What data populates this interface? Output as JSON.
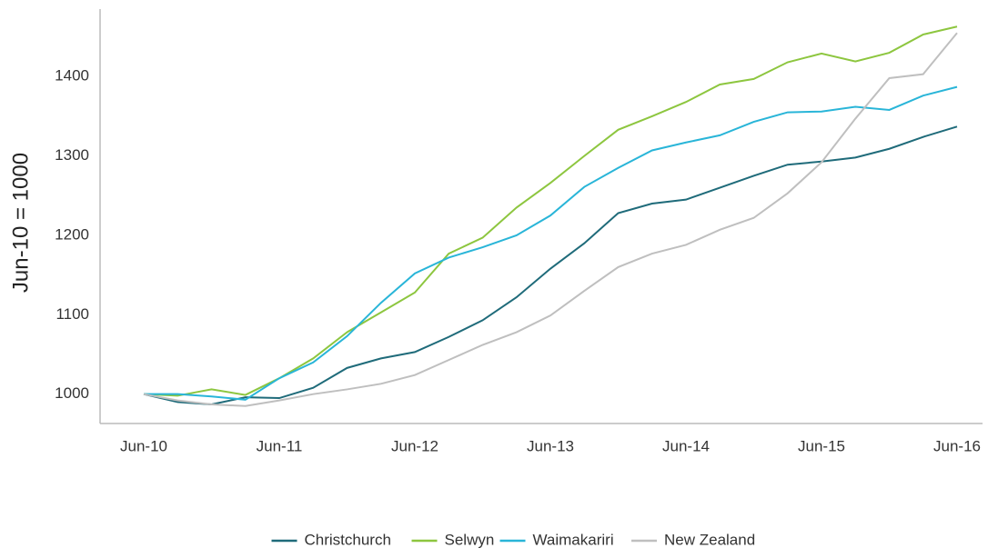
{
  "chart_data": {
    "type": "line",
    "y_label": "Jun-10 = 1000",
    "categories": [
      "Jun-10",
      null,
      null,
      null,
      "Jun-11",
      null,
      null,
      null,
      "Jun-12",
      null,
      null,
      null,
      "Jun-13",
      null,
      null,
      null,
      "Jun-14",
      null,
      null,
      null,
      "Jun-15",
      null,
      null,
      null,
      "Jun-16"
    ],
    "series": [
      {
        "name": "Christchurch",
        "color": "#1f6b7a",
        "values": [
          1000,
          990,
          987,
          996,
          995,
          1008,
          1033,
          1045,
          1053,
          1072,
          1093,
          1122,
          1158,
          1190,
          1228,
          1240,
          1245,
          1260,
          1275,
          1289,
          1293,
          1298,
          1309,
          1324,
          1337
        ]
      },
      {
        "name": "Selwyn",
        "color": "#8dc63f",
        "values": [
          1000,
          998,
          1006,
          999,
          1020,
          1045,
          1078,
          1103,
          1128,
          1177,
          1197,
          1235,
          1266,
          1300,
          1333,
          1350,
          1368,
          1390,
          1397,
          1418,
          1429,
          1419,
          1430,
          1453,
          1463
        ]
      },
      {
        "name": "Waimakariri",
        "color": "#29b5d8",
        "values": [
          1000,
          1000,
          997,
          993,
          1020,
          1040,
          1073,
          1115,
          1152,
          1172,
          1185,
          1200,
          1225,
          1261,
          1285,
          1307,
          1317,
          1326,
          1343,
          1355,
          1356,
          1362,
          1358,
          1376,
          1387
        ]
      },
      {
        "name": "New Zealand",
        "color": "#bfbfbf",
        "values": [
          1000,
          992,
          987,
          985,
          992,
          1000,
          1006,
          1013,
          1024,
          1043,
          1062,
          1078,
          1099,
          1130,
          1160,
          1177,
          1188,
          1207,
          1222,
          1253,
          1292,
          1347,
          1398,
          1403,
          1455
        ]
      }
    ],
    "ylim": [
      963,
      1485
    ],
    "yticks": [
      1000,
      1100,
      1200,
      1300,
      1400
    ],
    "grid": false,
    "legend": "bottom"
  }
}
